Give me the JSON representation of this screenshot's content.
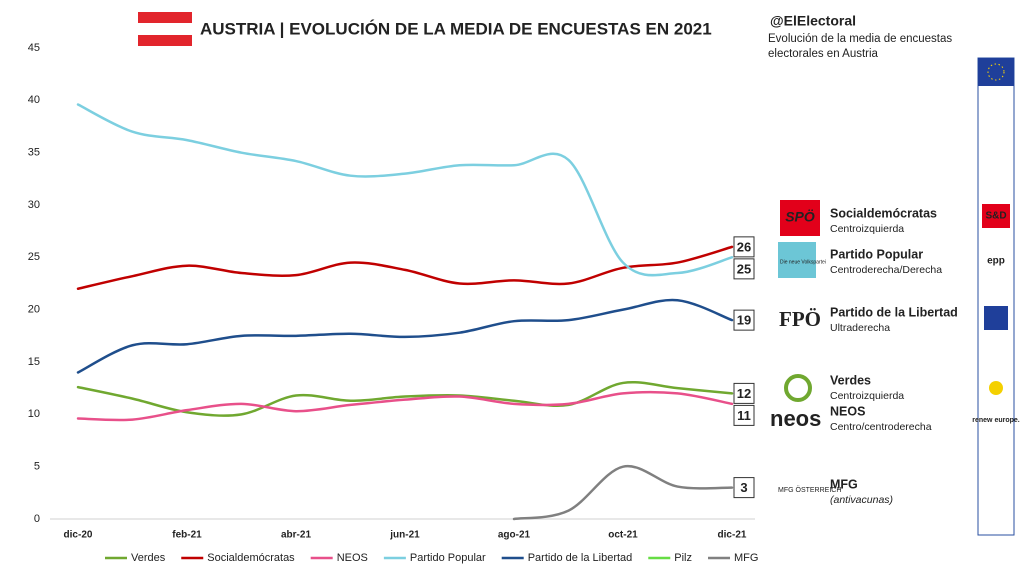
{
  "chart_data": {
    "type": "line",
    "title": "AUSTRIA | EVOLUCIÓN DE LA MEDIA DE ENCUESTAS EN 2021",
    "categories": [
      "dic-20",
      null,
      "feb-21",
      null,
      "abr-21",
      null,
      "jun-21",
      null,
      "ago-21",
      null,
      "oct-21",
      null,
      "dic-21"
    ],
    "ylim": [
      0,
      45
    ],
    "yticks": [
      0,
      5,
      10,
      15,
      20,
      25,
      30,
      35,
      40,
      45
    ],
    "grid": false,
    "series": [
      {
        "name": "Verdes",
        "color": "#70a830",
        "values": [
          12.6,
          11.5,
          10.2,
          10,
          11.8,
          11.3,
          11.7,
          11.8,
          11.3,
          10.9,
          13,
          12.5,
          12
        ]
      },
      {
        "name": "Socialdemócratas",
        "color": "#c00000",
        "values": [
          22,
          23.2,
          24.2,
          23.5,
          23.3,
          24.5,
          23.8,
          22.5,
          22.8,
          22.5,
          24,
          24.5,
          26
        ]
      },
      {
        "name": "NEOS",
        "color": "#e8508a",
        "values": [
          9.6,
          9.5,
          10.4,
          11,
          10.3,
          10.9,
          11.4,
          11.7,
          11,
          11,
          12,
          12,
          11
        ]
      },
      {
        "name": "Partido Popular",
        "color": "#7ccfe0",
        "values": [
          39.6,
          37,
          36.2,
          35,
          34.2,
          32.8,
          33,
          33.8,
          33.8,
          34.3,
          24.5,
          23.5,
          25
        ]
      },
      {
        "name": "Partido de la Libertad",
        "color": "#1f4e8c",
        "values": [
          14,
          16.6,
          16.7,
          17.5,
          17.5,
          17.7,
          17.4,
          17.8,
          18.9,
          19,
          20,
          20.9,
          19
        ]
      },
      {
        "name": "Pilz",
        "color": "#66dd44",
        "values": [
          null,
          null,
          null,
          null,
          null,
          null,
          null,
          null,
          null,
          null,
          null,
          null,
          null
        ]
      },
      {
        "name": "MFG",
        "color": "#808080",
        "values": [
          null,
          null,
          null,
          null,
          null,
          null,
          null,
          null,
          0,
          0.8,
          5,
          3.1,
          3
        ]
      }
    ]
  },
  "header": {
    "handle": "@ElElectoral",
    "description": "Evolución de la media de encuestas electorales en Austria"
  },
  "parties": [
    {
      "logo": "SPÖ",
      "name": "Socialdemócratas",
      "ideology": "Centroizquierda",
      "group": "S&D"
    },
    {
      "logo": "Die neue Volkspartei",
      "name": "Partido Popular",
      "ideology": "Centroderecha/Derecha",
      "group": "epp"
    },
    {
      "logo": "FPÖ",
      "name": "Partido de la Libertad",
      "ideology": "Ultraderecha"
    },
    {
      "logo": "",
      "name": "Verdes",
      "ideology": "Centroizquierda"
    },
    {
      "logo": "neos",
      "name": "NEOS",
      "ideology": "Centro/centroderecha",
      "group": "renew europe."
    },
    {
      "logo": "MFG ÖSTERREICH",
      "name": "MFG",
      "ideology": "(antivacunas)"
    }
  ]
}
